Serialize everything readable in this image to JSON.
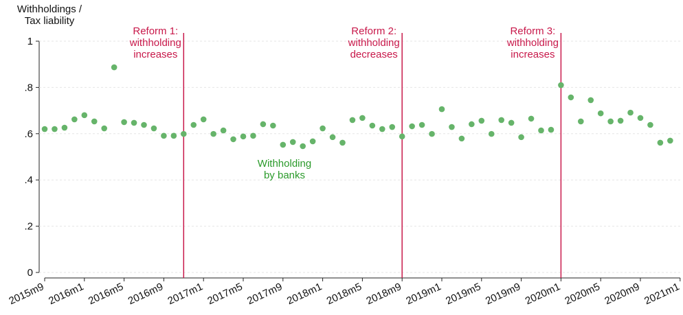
{
  "chart_data": {
    "type": "scatter",
    "y_label": [
      "Withholdings /",
      "Tax liability"
    ],
    "x": [
      "2015m9",
      "2015m10",
      "2015m11",
      "2015m12",
      "2016m1",
      "2016m2",
      "2016m3",
      "2016m4",
      "2016m5",
      "2016m6",
      "2016m7",
      "2016m8",
      "2016m9",
      "2016m10",
      "2016m11",
      "2016m12",
      "2017m1",
      "2017m2",
      "2017m3",
      "2017m4",
      "2017m5",
      "2017m6",
      "2017m7",
      "2017m8",
      "2017m9",
      "2017m10",
      "2017m11",
      "2017m12",
      "2018m1",
      "2018m2",
      "2018m3",
      "2018m4",
      "2018m5",
      "2018m6",
      "2018m7",
      "2018m8",
      "2018m9",
      "2018m10",
      "2018m11",
      "2018m12",
      "2019m1",
      "2019m2",
      "2019m3",
      "2019m4",
      "2019m5",
      "2019m6",
      "2019m7",
      "2019m8",
      "2019m9",
      "2019m10",
      "2019m11",
      "2019m12",
      "2020m1",
      "2020m2",
      "2020m3",
      "2020m4",
      "2020m5",
      "2020m6",
      "2020m7",
      "2020m8",
      "2020m9",
      "2020m10",
      "2020m11",
      "2020m12"
    ],
    "series": [
      {
        "name": [
          "Withholding",
          "by banks"
        ],
        "color": "#66b46a",
        "values": [
          0.62,
          0.62,
          0.626,
          0.662,
          0.68,
          0.653,
          0.623,
          0.887,
          0.65,
          0.647,
          0.638,
          0.623,
          0.591,
          0.591,
          0.599,
          0.638,
          0.662,
          0.599,
          0.614,
          0.576,
          0.588,
          0.591,
          0.641,
          0.635,
          0.552,
          0.564,
          0.546,
          0.567,
          0.623,
          0.585,
          0.561,
          0.659,
          0.668,
          0.635,
          0.62,
          0.629,
          0.588,
          0.632,
          0.638,
          0.599,
          0.706,
          0.629,
          0.579,
          0.641,
          0.656,
          0.599,
          0.659,
          0.647,
          0.585,
          0.665,
          0.614,
          0.617,
          0.81,
          0.757,
          0.653,
          0.745,
          0.688,
          0.653,
          0.656,
          0.691,
          0.668,
          0.638,
          0.561,
          0.57
        ]
      }
    ],
    "xticks": [
      "2015m9",
      "2016m1",
      "2016m5",
      "2016m9",
      "2017m1",
      "2017m5",
      "2017m9",
      "2018m1",
      "2018m5",
      "2018m9",
      "2019m1",
      "2019m5",
      "2019m9",
      "2020m1",
      "2020m5",
      "2020m9",
      "2021m1"
    ],
    "ylim": [
      0,
      1
    ],
    "yticks": [
      0,
      {
        "value": 0.2,
        "label": ".2"
      },
      {
        "value": 0.4,
        "label": ".4"
      },
      {
        "value": 0.6,
        "label": ".6"
      },
      {
        "value": 0.8,
        "label": ".8"
      },
      1
    ],
    "grid": true,
    "reforms": [
      {
        "x": "2016m11",
        "label": [
          "Reform 1:",
          "withholding",
          "increases"
        ],
        "color": "#c8184a"
      },
      {
        "x": "2018m9",
        "label": [
          "Reform 2:",
          "withholding",
          "decreases"
        ],
        "color": "#c8184a"
      },
      {
        "x": "2020m1",
        "label": [
          "Reform 3:",
          "withholding",
          "increases"
        ],
        "color": "#c8184a"
      }
    ],
    "series_label_color": "#2a9a2a"
  }
}
